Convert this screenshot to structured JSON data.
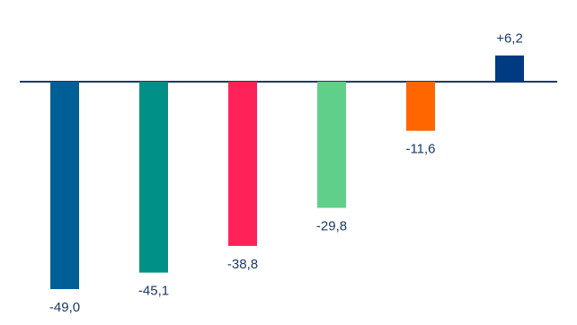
{
  "chart_data": {
    "type": "bar",
    "categories": [
      null,
      null,
      null,
      null,
      null,
      null
    ],
    "values": [
      -49.0,
      -45.1,
      -38.8,
      -29.8,
      -11.6,
      6.2
    ],
    "value_labels": [
      "-49,0",
      "-45,1",
      "-38,8",
      "-29,8",
      "-11,6",
      "+6,2"
    ],
    "colors": [
      "#005f96",
      "#009086",
      "#ff2259",
      "#5fcf8a",
      "#ff6600",
      "#003a80"
    ]
  }
}
